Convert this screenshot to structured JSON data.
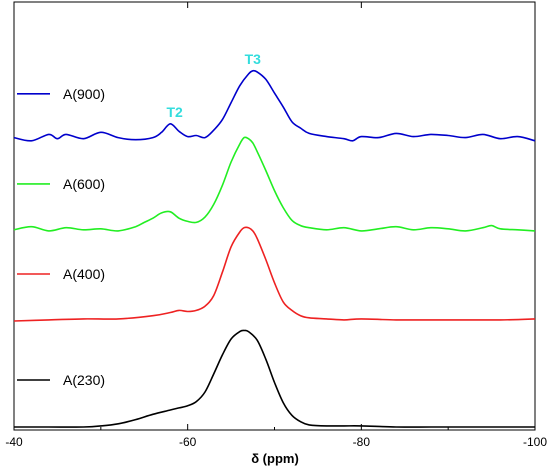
{
  "chart_data": {
    "type": "line",
    "title": "",
    "xlabel": "δ (ppm)",
    "ylabel": "",
    "xlim": [
      -40,
      -100
    ],
    "x_reversed": true,
    "xticks": [
      -40,
      -60,
      -80,
      -100
    ],
    "yticks_shown": false,
    "grid": false,
    "legend": "left, labels beside each stacked trace",
    "annotations": [
      {
        "text": "T2",
        "x": -58.5,
        "series": "A(900)",
        "color": "#33dddd"
      },
      {
        "text": "T3",
        "x": -67.5,
        "series": "A(900)",
        "color": "#33dddd"
      }
    ],
    "series": [
      {
        "name": "A(900)",
        "color": "#0000cc",
        "offset": 2.7,
        "x": [
          -40,
          -42,
          -44,
          -45,
          -46,
          -48,
          -50,
          -52,
          -54,
          -56,
          -57,
          -58,
          -59,
          -60,
          -61,
          -62,
          -63,
          -64,
          -65,
          -66,
          -67,
          -67.5,
          -68,
          -69,
          -70,
          -71,
          -72,
          -73,
          -74,
          -76,
          -78,
          -79,
          -80,
          -82,
          -84,
          -86,
          -88,
          -90,
          -92,
          -94,
          -96,
          -98,
          -100
        ],
        "values": [
          0.03,
          0.0,
          0.06,
          0.02,
          0.06,
          0.02,
          0.08,
          0.03,
          0.01,
          0.03,
          0.08,
          0.16,
          0.09,
          0.04,
          0.05,
          0.03,
          0.1,
          0.2,
          0.36,
          0.52,
          0.63,
          0.66,
          0.65,
          0.58,
          0.45,
          0.32,
          0.18,
          0.12,
          0.07,
          0.04,
          0.02,
          0.0,
          0.04,
          0.03,
          0.07,
          0.04,
          0.06,
          0.05,
          0.03,
          0.06,
          0.02,
          0.04,
          0.0
        ]
      },
      {
        "name": "A(600)",
        "color": "#22ee22",
        "offset": 1.85,
        "x": [
          -40,
          -42,
          -44,
          -46,
          -48,
          -50,
          -52,
          -54,
          -55,
          -56,
          -57,
          -58,
          -59,
          -60,
          -61,
          -62,
          -63,
          -64,
          -65,
          -66,
          -66.5,
          -67,
          -67.5,
          -68,
          -69,
          -70,
          -71,
          -72,
          -73,
          -74,
          -76,
          -78,
          -80,
          -82,
          -84,
          -86,
          -88,
          -90,
          -92,
          -94,
          -95,
          -96,
          -98,
          -100
        ],
        "values": [
          0.01,
          0.04,
          0.0,
          0.03,
          0.01,
          0.02,
          0.0,
          0.04,
          0.08,
          0.12,
          0.17,
          0.18,
          0.12,
          0.09,
          0.08,
          0.13,
          0.25,
          0.43,
          0.65,
          0.82,
          0.88,
          0.87,
          0.83,
          0.75,
          0.57,
          0.38,
          0.22,
          0.1,
          0.05,
          0.03,
          0.01,
          0.03,
          0.0,
          0.02,
          0.04,
          0.01,
          0.03,
          0.02,
          0.0,
          0.03,
          0.05,
          0.02,
          0.01,
          0.0
        ]
      },
      {
        "name": "A(400)",
        "color": "#ee2222",
        "offset": 1.0,
        "x": [
          -40,
          -44,
          -48,
          -52,
          -56,
          -58,
          -59,
          -60,
          -61,
          -62,
          -63,
          -64,
          -65,
          -66,
          -66.5,
          -67,
          -67.5,
          -68,
          -69,
          -70,
          -71,
          -72,
          -73,
          -74,
          -76,
          -78,
          -80,
          -84,
          -88,
          -92,
          -96,
          -100
        ],
        "values": [
          0.0,
          0.01,
          0.02,
          0.02,
          0.05,
          0.08,
          0.1,
          0.09,
          0.1,
          0.14,
          0.24,
          0.46,
          0.7,
          0.84,
          0.88,
          0.88,
          0.85,
          0.78,
          0.58,
          0.36,
          0.18,
          0.1,
          0.05,
          0.03,
          0.02,
          0.01,
          0.02,
          0.01,
          0.01,
          0.01,
          0.01,
          0.02
        ]
      },
      {
        "name": "A(230)",
        "color": "#000000",
        "offset": 0.0,
        "x": [
          -40,
          -44,
          -48,
          -50,
          -52,
          -54,
          -56,
          -58,
          -59,
          -60,
          -61,
          -62,
          -63,
          -64,
          -65,
          -66,
          -66.5,
          -67,
          -68,
          -69,
          -70,
          -71,
          -72,
          -73,
          -74,
          -76,
          -78,
          -80,
          -84,
          -88,
          -92,
          -96,
          -100
        ],
        "values": [
          0.0,
          0.0,
          0.0,
          0.01,
          0.03,
          0.07,
          0.12,
          0.16,
          0.18,
          0.2,
          0.24,
          0.33,
          0.5,
          0.68,
          0.83,
          0.9,
          0.91,
          0.9,
          0.82,
          0.64,
          0.42,
          0.23,
          0.11,
          0.05,
          0.02,
          0.01,
          0.01,
          0.01,
          0.0,
          0.0,
          0.0,
          0.0,
          0.0
        ]
      }
    ]
  }
}
